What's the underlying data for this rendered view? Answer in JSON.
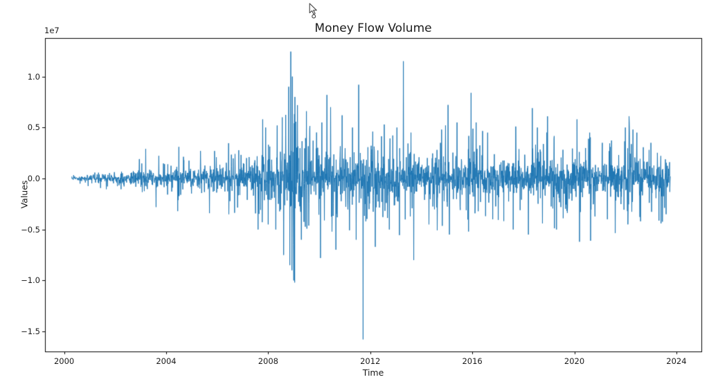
{
  "window": {
    "background": "#ffffff"
  },
  "chart_data": {
    "type": "line",
    "title": "Money Flow Volume",
    "xlabel": "Time",
    "ylabel": "Values",
    "y_offset_text": "1e7",
    "series_name": "Money Flow Volume",
    "series_color": "#1f77b4",
    "axis_color": "#000000",
    "grid": false,
    "legend": "none",
    "xlim": [
      1999.25,
      2024.98
    ],
    "ylim_e7": [
      -1.697,
      1.378
    ],
    "x_range_data": [
      2000.3,
      2023.76
    ],
    "units": "y values in units of 1e7 (matches axis offset label)",
    "x_ticks": [
      {
        "value": 2000,
        "label": "2000"
      },
      {
        "value": 2004,
        "label": "2004"
      },
      {
        "value": 2008,
        "label": "2008"
      },
      {
        "value": 2012,
        "label": "2012"
      },
      {
        "value": 2016,
        "label": "2016"
      },
      {
        "value": 2020,
        "label": "2020"
      },
      {
        "value": 2024,
        "label": "2024"
      }
    ],
    "y_ticks": [
      {
        "value": 1.0,
        "label": "1.0"
      },
      {
        "value": 0.5,
        "label": "0.5"
      },
      {
        "value": 0.0,
        "label": "0.0"
      },
      {
        "value": -0.5,
        "label": "−0.5"
      },
      {
        "value": -1.0,
        "label": "−1.0"
      },
      {
        "value": -1.5,
        "label": "−1.5"
      }
    ],
    "envelope_band_e7": [
      [
        2000.3,
        0.015
      ],
      [
        2001,
        0.03
      ],
      [
        2002,
        0.05
      ],
      [
        2003,
        0.08
      ],
      [
        2004,
        0.11
      ],
      [
        2005,
        0.12
      ],
      [
        2006,
        0.13
      ],
      [
        2007,
        0.16
      ],
      [
        2007.8,
        0.22
      ],
      [
        2008.4,
        0.3
      ],
      [
        2008.8,
        0.5
      ],
      [
        2009.0,
        0.55
      ],
      [
        2009.3,
        0.4
      ],
      [
        2009.8,
        0.3
      ],
      [
        2010.5,
        0.28
      ],
      [
        2011,
        0.25
      ],
      [
        2011.7,
        0.3
      ],
      [
        2012.2,
        0.3
      ],
      [
        2013,
        0.27
      ],
      [
        2014,
        0.22
      ],
      [
        2015,
        0.25
      ],
      [
        2016,
        0.27
      ],
      [
        2016.5,
        0.22
      ],
      [
        2017,
        0.18
      ],
      [
        2018,
        0.24
      ],
      [
        2019,
        0.22
      ],
      [
        2020,
        0.25
      ],
      [
        2020.7,
        0.22
      ],
      [
        2021,
        0.18
      ],
      [
        2021.8,
        0.24
      ],
      [
        2022.3,
        0.3
      ],
      [
        2022.8,
        0.22
      ],
      [
        2023.3,
        0.22
      ],
      [
        2023.76,
        0.22
      ]
    ],
    "spikes_e7": [
      [
        2003.2,
        0.29
      ],
      [
        2003.6,
        -0.28
      ],
      [
        2004.45,
        -0.32
      ],
      [
        2004.5,
        0.31
      ],
      [
        2005.35,
        0.27
      ],
      [
        2005.7,
        -0.34
      ],
      [
        2005.9,
        0.27
      ],
      [
        2006.46,
        -0.35
      ],
      [
        2006.7,
        0.24
      ],
      [
        2007.25,
        0.21
      ],
      [
        2007.6,
        -0.5
      ],
      [
        2007.78,
        0.58
      ],
      [
        2007.9,
        0.5
      ],
      [
        2008.0,
        -0.45
      ],
      [
        2008.3,
        -0.5
      ],
      [
        2008.35,
        0.52
      ],
      [
        2008.55,
        0.6
      ],
      [
        2008.6,
        -0.75
      ],
      [
        2008.8,
        0.9
      ],
      [
        2008.85,
        -0.85
      ],
      [
        2008.88,
        1.245
      ],
      [
        2008.93,
        -0.9
      ],
      [
        2008.95,
        1.0
      ],
      [
        2009.0,
        -1.0
      ],
      [
        2009.05,
        0.8
      ],
      [
        2009.15,
        0.72
      ],
      [
        2009.3,
        -0.6
      ],
      [
        2009.5,
        0.66
      ],
      [
        2010.05,
        -0.78
      ],
      [
        2010.1,
        0.55
      ],
      [
        2010.3,
        0.82
      ],
      [
        2010.45,
        0.7
      ],
      [
        2010.5,
        -0.52
      ],
      [
        2010.9,
        0.62
      ],
      [
        2011.3,
        0.5
      ],
      [
        2011.45,
        -0.6
      ],
      [
        2011.55,
        0.92
      ],
      [
        2011.72,
        -1.578
      ],
      [
        2012.1,
        0.46
      ],
      [
        2012.2,
        -0.67
      ],
      [
        2012.55,
        0.53
      ],
      [
        2012.75,
        -0.5
      ],
      [
        2013.05,
        0.5
      ],
      [
        2013.3,
        1.15
      ],
      [
        2013.6,
        0.45
      ],
      [
        2013.7,
        -0.8
      ],
      [
        2014.3,
        -0.45
      ],
      [
        2014.8,
        0.48
      ],
      [
        2015.1,
        -0.55
      ],
      [
        2015.4,
        0.55
      ],
      [
        2015.85,
        -0.52
      ],
      [
        2015.95,
        0.84
      ],
      [
        2016.15,
        0.55
      ],
      [
        2016.6,
        0.45
      ],
      [
        2016.8,
        -0.4
      ],
      [
        2017.6,
        -0.5
      ],
      [
        2017.7,
        0.51
      ],
      [
        2018.2,
        -0.55
      ],
      [
        2018.35,
        0.69
      ],
      [
        2018.55,
        0.5
      ],
      [
        2018.75,
        -0.44
      ],
      [
        2018.95,
        0.61
      ],
      [
        2019.2,
        0.39
      ],
      [
        2019.3,
        -0.5
      ],
      [
        2020.1,
        0.58
      ],
      [
        2020.2,
        -0.62
      ],
      [
        2020.6,
        0.45
      ],
      [
        2021.1,
        0.35
      ],
      [
        2021.3,
        -0.4
      ],
      [
        2022.0,
        0.5
      ],
      [
        2022.1,
        -0.45
      ],
      [
        2022.15,
        0.55
      ],
      [
        2022.3,
        0.48
      ],
      [
        2022.45,
        0.45
      ],
      [
        2022.6,
        -0.42
      ],
      [
        2023.0,
        0.35
      ],
      [
        2023.4,
        -0.44
      ],
      [
        2023.6,
        -0.35
      ]
    ],
    "extremes_e7": {
      "max": [
        2008.88,
        1.245
      ],
      "min": [
        2011.72,
        -1.578
      ]
    },
    "n_points": 2600,
    "seed": 12345
  },
  "cursor": {
    "type": "arrow-pointer",
    "visible": true
  }
}
